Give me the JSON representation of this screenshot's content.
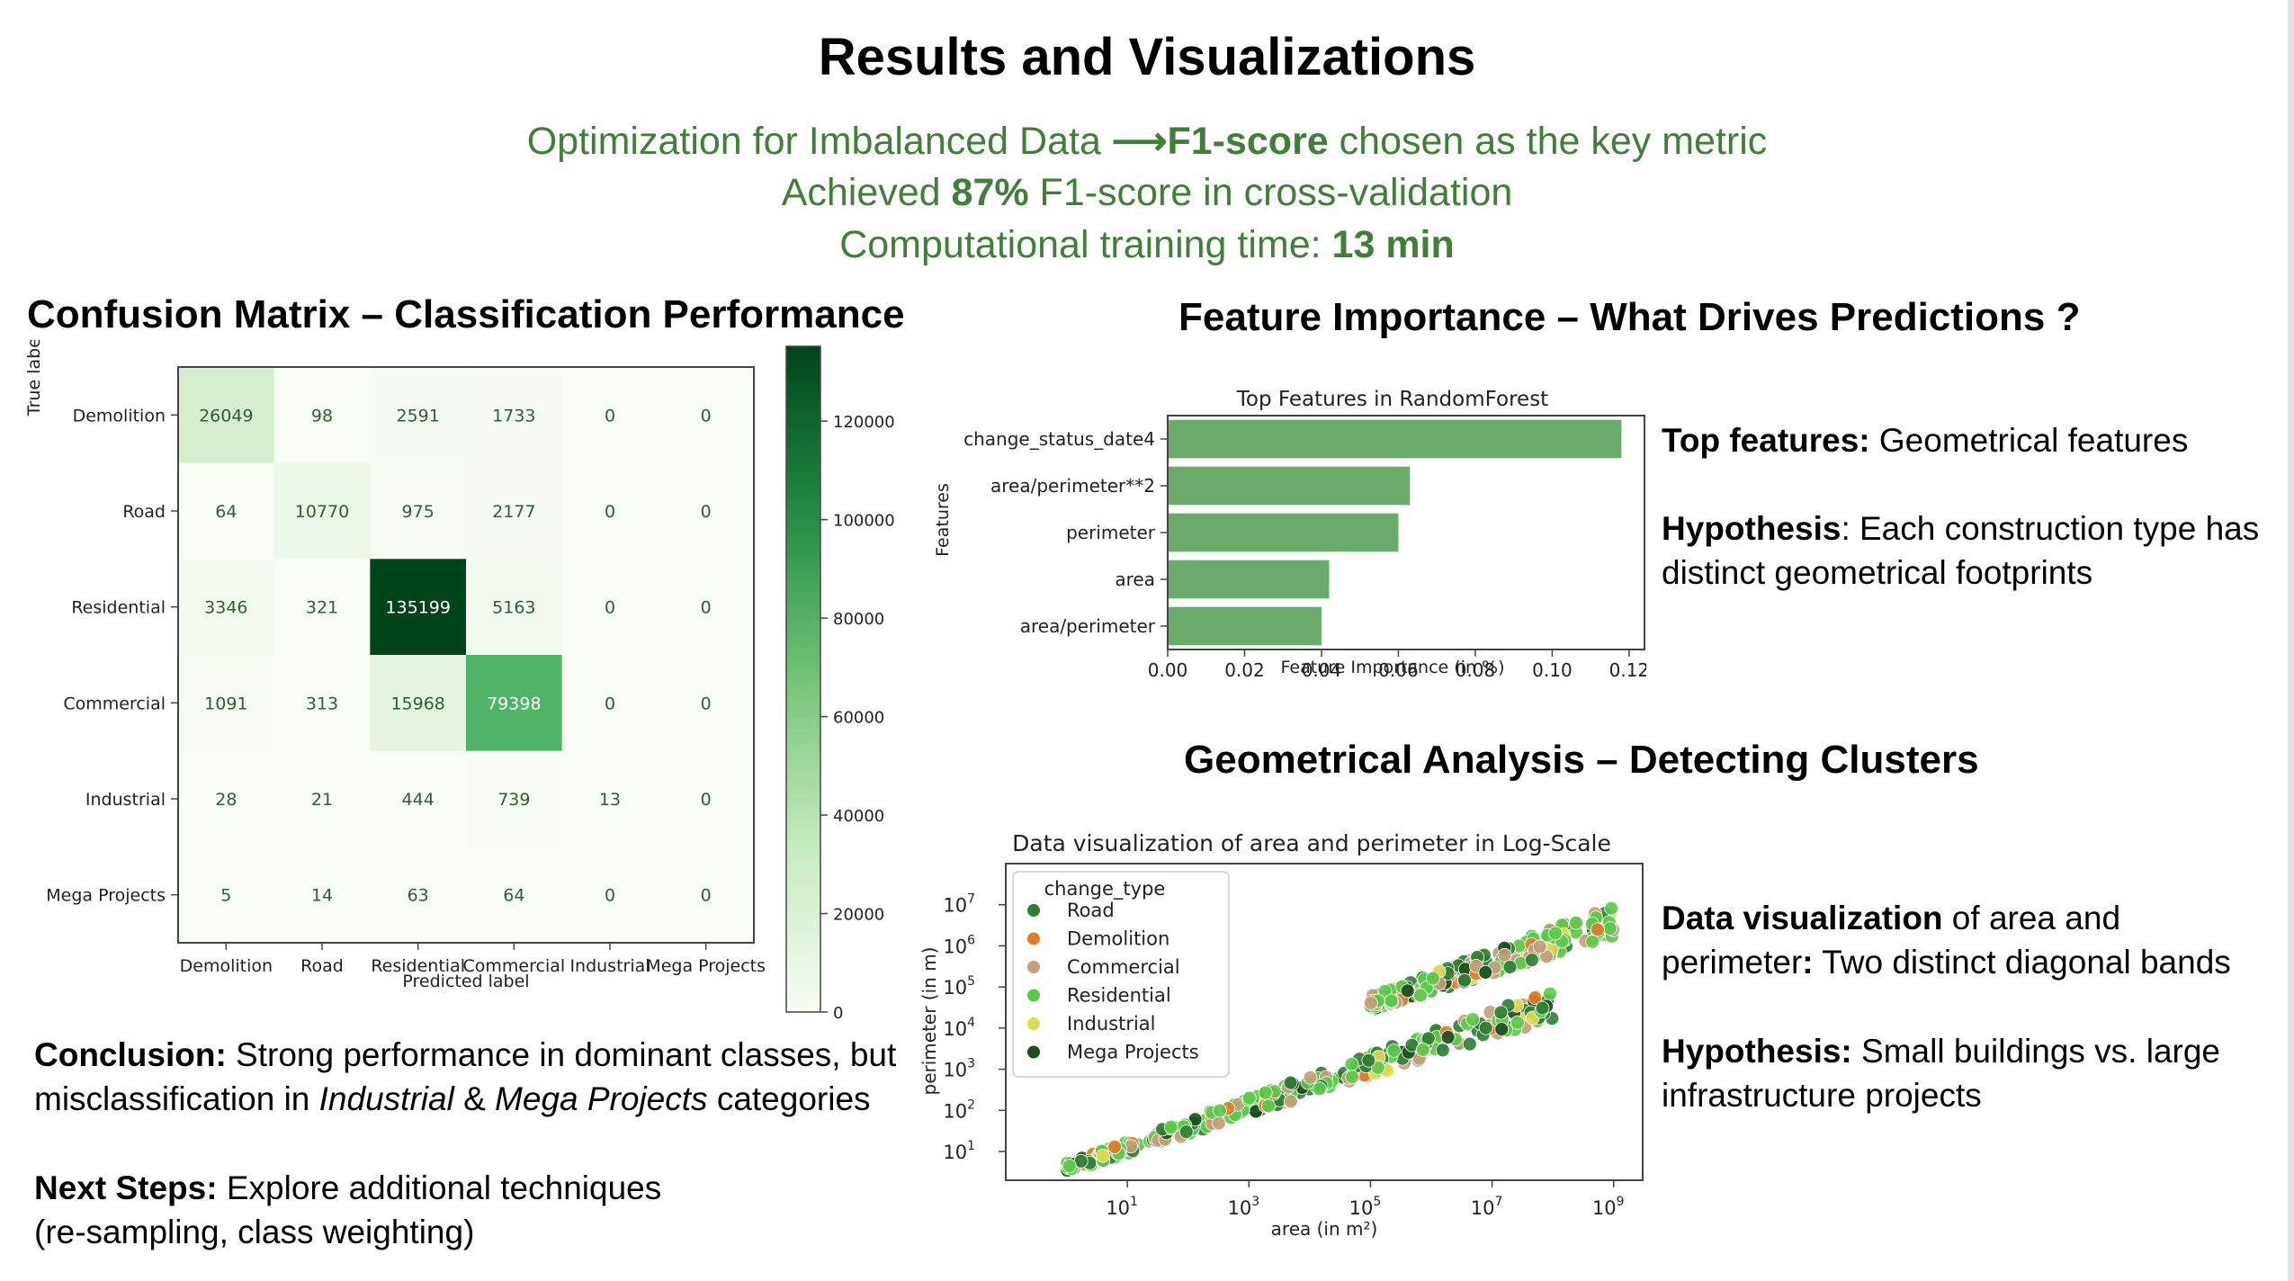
{
  "slide": {
    "title": "Results and Visualizations",
    "subtitle_1a": "Optimization for Imbalanced Data ",
    "subtitle_1_arrow": "⟶",
    "subtitle_1b": "F1-score",
    "subtitle_1c": " chosen as the key metric",
    "subtitle_2a": "Achieved ",
    "subtitle_2b": "87%",
    "subtitle_2c": " F1-score in cross-validation",
    "subtitle_3a": "Computational training time: ",
    "subtitle_3b": "13 min"
  },
  "confusion": {
    "heading": "Confusion Matrix – Classification Performance",
    "conclusion_label": "Conclusion:",
    "conclusion_text_1": " Strong performance in dominant classes, but misclassification in ",
    "conclusion_italic_1": "Industrial",
    "conclusion_text_2": " & ",
    "conclusion_italic_2": "Mega Projects",
    "conclusion_text_3": " categories",
    "next_label": "Next Steps:",
    "next_text": " Explore additional techniques (re-sampling, class weighting)"
  },
  "importance": {
    "heading": "Feature Importance – What Drives Predictions ?",
    "top_label": "Top features:",
    "top_text": " Geometrical features",
    "hyp_label": "Hypothesis",
    "hyp_text": ": Each construction type has distinct geometrical footprints"
  },
  "geometry": {
    "heading": "Geometrical Analysis – Detecting Clusters",
    "dv_label": "Data visualization",
    "dv_text_1": " of area and perimeter",
    "dv_colon": ":",
    "dv_text_2": " Two distinct diagonal bands",
    "hyp_label": "Hypothesis:",
    "hyp_text": " Small buildings vs. large infrastructure projects"
  },
  "chart_data": [
    {
      "type": "heatmap",
      "title": "",
      "xlabel": "Predicted label",
      "ylabel": "True label",
      "x_categories": [
        "Demolition",
        "Road",
        "Residential",
        "Commercial",
        "Industrial",
        "Mega Projects"
      ],
      "y_categories": [
        "Demolition",
        "Road",
        "Residential",
        "Commercial",
        "Industrial",
        "Mega Projects"
      ],
      "values": [
        [
          26049,
          98,
          2591,
          1733,
          0,
          0
        ],
        [
          64,
          10770,
          975,
          2177,
          0,
          0
        ],
        [
          3346,
          321,
          135199,
          5163,
          0,
          0
        ],
        [
          1091,
          313,
          15968,
          79398,
          0,
          0
        ],
        [
          28,
          21,
          444,
          739,
          13,
          0
        ],
        [
          5,
          14,
          63,
          64,
          0,
          0
        ]
      ],
      "colorbar_ticks": [
        0,
        20000,
        40000,
        60000,
        80000,
        100000,
        120000
      ],
      "colorbar_range": [
        0,
        135199
      ],
      "colormap": [
        "#f7fcf5",
        "#00441b"
      ]
    },
    {
      "type": "bar",
      "orientation": "horizontal",
      "title": "Top Features in RandomForest",
      "xlabel": "Feature Importance (in %)",
      "ylabel": "Features",
      "categories": [
        "change_status_date4",
        "area/perimeter**2",
        "perimeter",
        "area",
        "area/perimeter"
      ],
      "values": [
        0.118,
        0.063,
        0.06,
        0.042,
        0.04
      ],
      "xlim": [
        0,
        0.124
      ],
      "xticks": [
        "0.00",
        "0.02",
        "0.04",
        "0.06",
        "0.08",
        "0.10",
        "0.12"
      ],
      "color": "#6aaa6a"
    },
    {
      "type": "scatter",
      "title": "Data visualization of area and perimeter in Log-Scale",
      "xlabel": "area (in m²)",
      "ylabel": "perimeter (in m)",
      "x_scale": "log",
      "y_scale": "log",
      "xlim": [
        0.1,
        3000000000
      ],
      "ylim": [
        2,
        100000000
      ],
      "x_ticks": [
        10,
        1000,
        100000,
        10000000,
        1000000000
      ],
      "x_tick_exponents": [
        "1",
        "3",
        "5",
        "7",
        "9"
      ],
      "y_ticks": [
        10,
        100,
        1000,
        10000,
        100000,
        1000000,
        10000000
      ],
      "y_tick_exponents": [
        "1",
        "2",
        "3",
        "4",
        "5",
        "6",
        "7"
      ],
      "tick_base": "10",
      "legend_title": "change_type",
      "legend_position": "top-left",
      "series": [
        {
          "name": "Road",
          "color": "#2e7d32"
        },
        {
          "name": "Demolition",
          "color": "#e07b28"
        },
        {
          "name": "Commercial",
          "color": "#c2a078"
        },
        {
          "name": "Residential",
          "color": "#5cc84a"
        },
        {
          "name": "Industrial",
          "color": "#e0dc50"
        },
        {
          "name": "Mega Projects",
          "color": "#1a4d1a"
        }
      ],
      "bands": [
        {
          "label": "lower",
          "x_range": [
            1,
            100000000
          ],
          "slope": 0.5,
          "perimeter_at_area_1": 4
        },
        {
          "label": "upper",
          "x_range": [
            100000,
            1000000000
          ],
          "slope": 0.5,
          "perimeter_at_area_100000": 40000
        }
      ]
    }
  ]
}
